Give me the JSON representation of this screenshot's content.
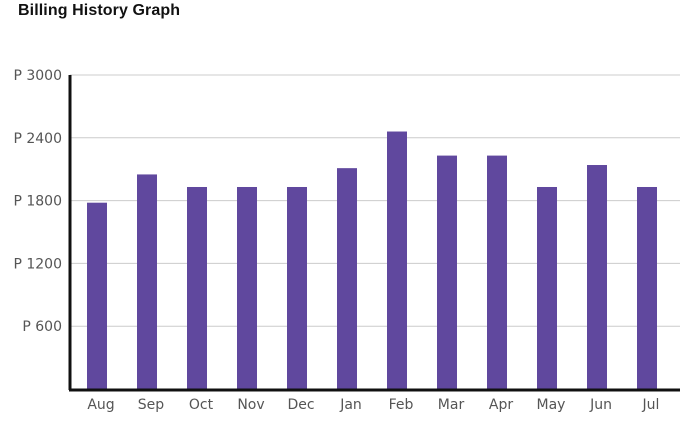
{
  "header": {
    "title": "Billing History Graph"
  },
  "chart_data": {
    "type": "bar",
    "title": "Billing History Graph",
    "xlabel": "",
    "ylabel": "",
    "categories": [
      "Aug",
      "Sep",
      "Oct",
      "Nov",
      "Dec",
      "Jan",
      "Feb",
      "Mar",
      "Apr",
      "May",
      "Jun",
      "Jul"
    ],
    "values": [
      1780,
      2050,
      1930,
      1930,
      1930,
      2110,
      2460,
      2230,
      2230,
      1930,
      2140,
      1930
    ],
    "ylim": [
      0,
      3000
    ],
    "yticks": [
      600,
      1200,
      1800,
      2400,
      3000
    ],
    "ytick_labels": [
      "P 600",
      "P 1200",
      "P 1800",
      "P 2400",
      "P 3000"
    ],
    "grid": true,
    "legend": "none",
    "colors": {
      "bar": "#60489e",
      "grid": "#cccccc",
      "axis": "#111111"
    }
  }
}
